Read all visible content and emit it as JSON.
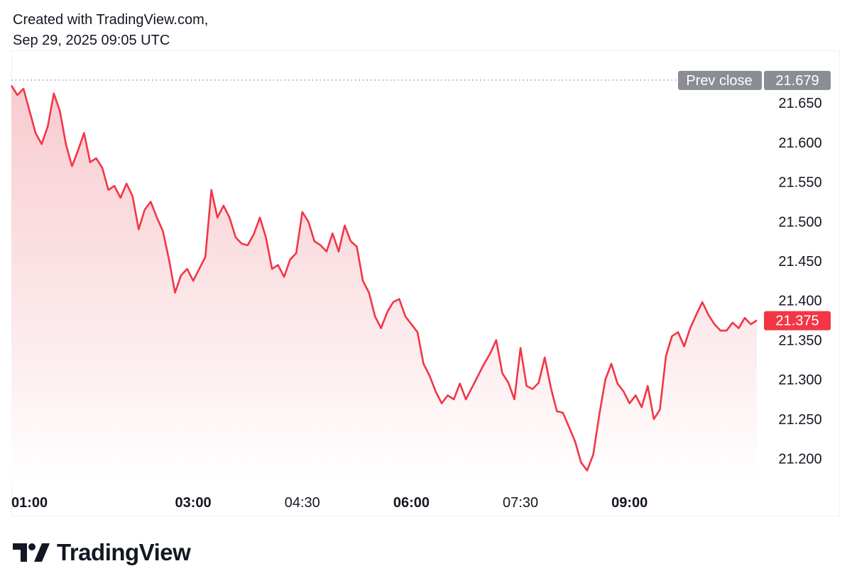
{
  "header": {
    "line1": "Created with TradingView.com,",
    "line2": "Sep 29, 2025 09:05 UTC"
  },
  "footer": {
    "brand": "TradingView",
    "logo_icon": "tradingview-logo-icon"
  },
  "colors": {
    "line": "#f23645",
    "fill_top": "#f7c6cb",
    "fill_bottom": "#ffffff",
    "label_gray": "#8a8d93",
    "text": "#131722"
  },
  "chart_data": {
    "type": "area",
    "x_ticks": [
      "01:00",
      "03:00",
      "04:30",
      "06:00",
      "07:30",
      "09:00"
    ],
    "x_ticks_bold": [
      true,
      true,
      false,
      true,
      false,
      true
    ],
    "ylim": [
      21.17,
      21.695
    ],
    "y_ticks": [
      "21.650",
      "21.600",
      "21.550",
      "21.500",
      "21.450",
      "21.400",
      "21.350",
      "21.300",
      "21.250",
      "21.200"
    ],
    "prev_close": {
      "label": "Prev close",
      "value": "21.679"
    },
    "last_price": "21.375",
    "x_range": [
      "00:30",
      "10:45"
    ],
    "series": [
      {
        "x": [
          "00:30",
          "00:35",
          "00:40",
          "00:45",
          "00:50",
          "00:55",
          "01:00",
          "01:05",
          "01:10",
          "01:15",
          "01:20",
          "01:25",
          "01:30",
          "01:35",
          "01:40",
          "01:45",
          "01:50",
          "01:55",
          "02:00",
          "02:05",
          "02:10",
          "02:15",
          "02:20",
          "02:25",
          "02:30",
          "02:35",
          "02:40",
          "02:45",
          "02:50",
          "02:55",
          "03:00",
          "03:05",
          "03:10",
          "03:15",
          "03:20",
          "03:25",
          "03:30",
          "03:35",
          "03:40",
          "03:45",
          "03:50",
          "03:55",
          "04:00",
          "04:05",
          "04:10",
          "04:15",
          "04:20",
          "04:25",
          "04:30",
          "04:35",
          "04:40",
          "04:45",
          "04:50",
          "04:55",
          "05:00",
          "05:05",
          "05:10",
          "05:15",
          "05:20",
          "05:25",
          "05:30",
          "05:35",
          "05:40",
          "05:45",
          "05:50",
          "05:55",
          "06:00",
          "06:05",
          "06:10",
          "06:15",
          "06:20",
          "06:25",
          "06:30",
          "06:35",
          "06:40",
          "06:45",
          "06:50",
          "06:55",
          "07:00",
          "07:05",
          "07:10",
          "07:15",
          "07:20",
          "07:25",
          "07:30",
          "07:35",
          "07:40",
          "07:45",
          "07:50",
          "07:55",
          "08:00",
          "08:05",
          "08:10",
          "08:15",
          "08:20",
          "08:25",
          "08:30",
          "08:35",
          "08:40",
          "08:45",
          "08:50",
          "08:55",
          "09:00",
          "09:05",
          "09:10",
          "09:15",
          "09:20",
          "09:25",
          "09:30",
          "09:35",
          "09:40",
          "09:45",
          "09:50",
          "09:55",
          "10:00",
          "10:05",
          "10:10",
          "10:15",
          "10:20",
          "10:25",
          "10:30",
          "10:35",
          "10:40",
          "10:45"
        ],
        "values": [
          21.672,
          21.66,
          21.668,
          21.64,
          21.612,
          21.598,
          21.62,
          21.662,
          21.64,
          21.598,
          21.57,
          21.59,
          21.612,
          21.575,
          21.58,
          21.568,
          21.54,
          21.545,
          21.53,
          21.548,
          21.532,
          21.49,
          21.515,
          21.525,
          21.505,
          21.488,
          21.452,
          21.41,
          21.432,
          21.44,
          21.425,
          21.44,
          21.455,
          21.54,
          21.505,
          21.52,
          21.505,
          21.48,
          21.472,
          21.47,
          21.484,
          21.505,
          21.48,
          21.44,
          21.445,
          21.43,
          21.452,
          21.46,
          21.512,
          21.5,
          21.475,
          21.47,
          21.462,
          21.485,
          21.462,
          21.495,
          21.475,
          21.468,
          21.425,
          21.41,
          21.38,
          21.365,
          21.385,
          21.398,
          21.402,
          21.38,
          21.37,
          21.36,
          21.32,
          21.305,
          21.285,
          21.27,
          21.28,
          21.275,
          21.295,
          21.275,
          21.29,
          21.305,
          21.32,
          21.333,
          21.35,
          21.308,
          21.296,
          21.275,
          21.34,
          21.292,
          21.288,
          21.296,
          21.328,
          21.29,
          21.26,
          21.258,
          21.24,
          21.222,
          21.195,
          21.185,
          21.205,
          21.255,
          21.3,
          21.32,
          21.295,
          21.285,
          21.27,
          21.28,
          21.265,
          21.292,
          21.25,
          21.262,
          21.33,
          21.355,
          21.36,
          21.342,
          21.365,
          21.382,
          21.398,
          21.382,
          21.37,
          21.362,
          21.362,
          21.372,
          21.365,
          21.378,
          21.37,
          21.375
        ]
      }
    ]
  }
}
